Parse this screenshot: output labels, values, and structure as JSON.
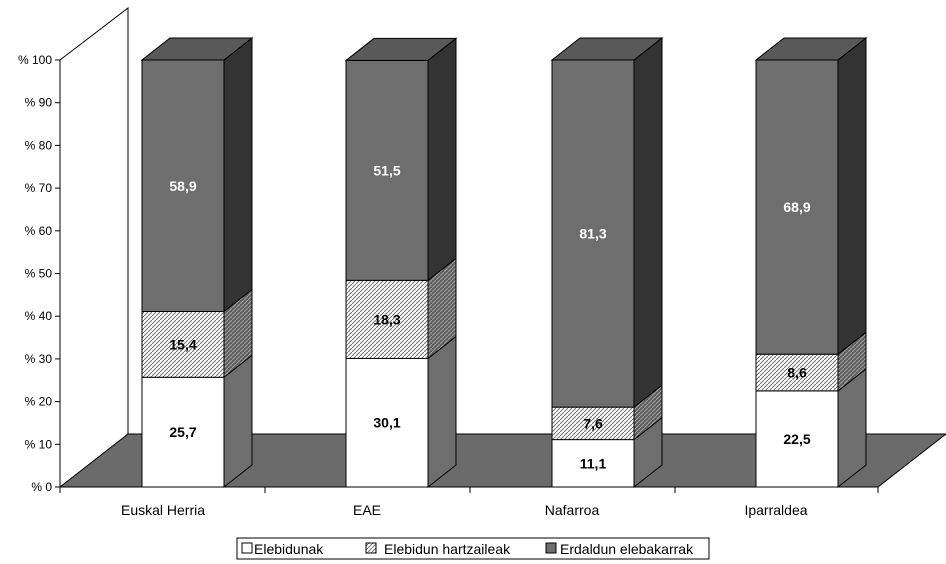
{
  "chart_data": {
    "type": "bar",
    "stacked": true,
    "three_d": true,
    "categories": [
      "Euskal Herria",
      "EAE",
      "Nafarroa",
      "Iparraldea"
    ],
    "series": [
      {
        "name": "Elebidunak",
        "values": [
          25.7,
          30.1,
          11.1,
          22.5
        ],
        "color": "#ffffff",
        "pattern": "solid"
      },
      {
        "name": "Elebidun hartzaileak",
        "values": [
          15.4,
          18.3,
          7.6,
          8.6
        ],
        "color": "#e0e0e0",
        "pattern": "hatched"
      },
      {
        "name": "Erdaldun elebakarrak",
        "values": [
          58.9,
          51.5,
          81.3,
          68.9
        ],
        "color": "#6e6e6e",
        "pattern": "solid"
      }
    ],
    "data_labels": [
      [
        "25,7",
        "30,1",
        "11,1",
        "22,5"
      ],
      [
        "15,4",
        "18,3",
        "7,6",
        "8,6"
      ],
      [
        "58,9",
        "51,5",
        "81,3",
        "68,9"
      ]
    ],
    "y_ticks": [
      "% 0",
      "% 10",
      "% 20",
      "% 30",
      "% 40",
      "% 50",
      "% 60",
      "% 70",
      "% 80",
      "% 90",
      "% 100"
    ],
    "ylim": [
      0,
      100
    ],
    "title": "",
    "xlabel": "",
    "ylabel": "",
    "grid": false,
    "legend_position": "bottom"
  }
}
